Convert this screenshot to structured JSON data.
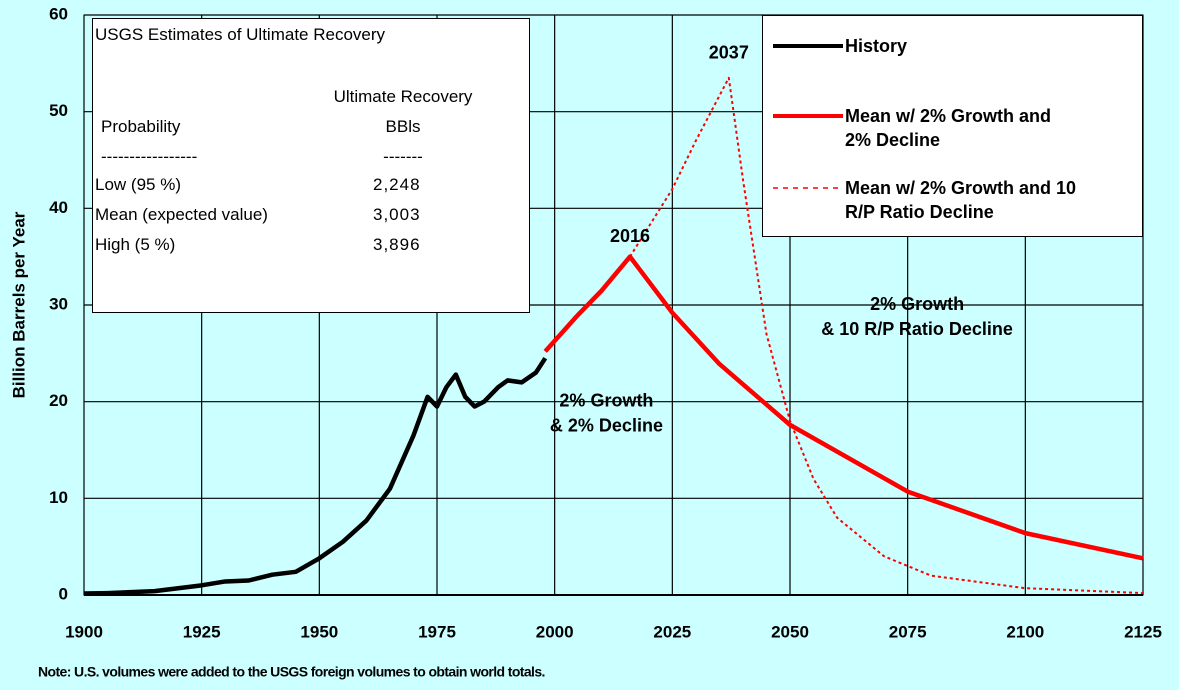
{
  "chart_data": {
    "type": "line",
    "y_label": "Billion Barrels per Year",
    "note": "Note:  U.S. volumes were added to the USGS foreign volumes to obtain world totals.",
    "xlim": [
      1900,
      2125
    ],
    "xticks": [
      1900,
      1925,
      1950,
      1975,
      2000,
      2025,
      2050,
      2075,
      2100,
      2125
    ],
    "ylim": [
      0,
      60
    ],
    "yticks": [
      0,
      10,
      20,
      30,
      40,
      50,
      60
    ],
    "grid": true,
    "legend": "upper right",
    "series": [
      {
        "name": "History",
        "color": "#000000",
        "dash": false,
        "x": [
          1900,
          1905,
          1910,
          1915,
          1920,
          1925,
          1930,
          1935,
          1940,
          1945,
          1950,
          1955,
          1960,
          1965,
          1970,
          1973,
          1975,
          1977,
          1979,
          1981,
          1983,
          1985,
          1988,
          1990,
          1993,
          1996,
          1998
        ],
        "values": [
          0.15,
          0.2,
          0.3,
          0.4,
          0.7,
          1.0,
          1.4,
          1.5,
          2.1,
          2.4,
          3.8,
          5.5,
          7.7,
          11,
          16.5,
          20.5,
          19.5,
          21.5,
          22.8,
          20.5,
          19.5,
          20,
          21.5,
          22.2,
          22,
          23,
          24.5
        ]
      },
      {
        "name": "Mean w/ 2% Growth and 2% Decline",
        "color": "#ff0000",
        "dash": false,
        "x": [
          1998,
          2005,
          2010,
          2016,
          2025,
          2035,
          2050,
          2075,
          2100,
          2125
        ],
        "values": [
          25.2,
          29,
          31.5,
          35,
          29.2,
          23.9,
          17.6,
          10.7,
          6.4,
          3.8
        ]
      },
      {
        "name": "Mean w/ 2% Growth and 10 R/P Ratio Decline",
        "color": "#ff0000",
        "dash": true,
        "x": [
          2016,
          2025,
          2030,
          2037,
          2040,
          2045,
          2050,
          2055,
          2060,
          2070,
          2080,
          2100,
          2125
        ],
        "values": [
          35,
          42,
          47,
          53.5,
          43,
          27,
          18,
          12,
          8,
          4,
          2,
          0.7,
          0.2
        ]
      }
    ],
    "annotations": [
      {
        "lines": [
          "2037"
        ],
        "x": 2037,
        "y": 56
      },
      {
        "lines": [
          "2016"
        ],
        "x": 2016,
        "y": 37
      },
      {
        "lines": [
          "2% Growth",
          "& 2% Decline"
        ],
        "x": 2011,
        "y": 20
      },
      {
        "lines": [
          "2% Growth",
          "& 10 R/P Ratio Decline"
        ],
        "x": 2077,
        "y": 30
      }
    ],
    "inset": {
      "title": "USGS Estimates of Ultimate Recovery",
      "header": [
        [
          "",
          "Ultimate Recovery"
        ],
        [
          "Probability",
          "BBls"
        ],
        [
          "-----------------",
          "-------"
        ]
      ],
      "rows": [
        [
          "Low (95 %)",
          "2,248"
        ],
        [
          "Mean (expected value)",
          "3,003"
        ],
        [
          "High (5 %)",
          "3,896"
        ]
      ]
    }
  }
}
